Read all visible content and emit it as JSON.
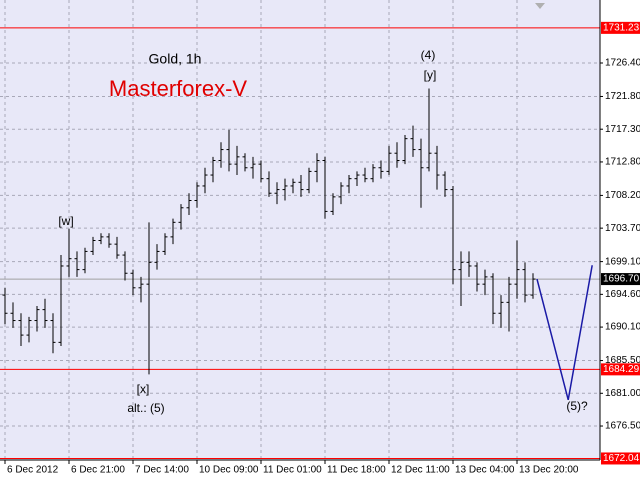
{
  "chart_data": {
    "type": "ohlc",
    "title": "Gold, 1h",
    "subtitle": "Masterforex-V",
    "color": "#000000",
    "open": [
      1694.5,
      1692.0,
      1691.0,
      1689.0,
      1691.0,
      1692.5,
      1691.0,
      1688.0,
      1698.5,
      1699.5,
      1698.0,
      1700.5,
      1702.0,
      1702.5,
      1701.5,
      1700.0,
      1697.5,
      1695.5,
      1696.0,
      1699.0,
      1700.5,
      1702.5,
      1704.5,
      1706.5,
      1707.5,
      1709.5,
      1711.0,
      1713.0,
      1714.5,
      1712.5,
      1713.5,
      1712.0,
      1712.5,
      1710.5,
      1708.5,
      1709.0,
      1709.5,
      1710.0,
      1709.0,
      1711.5,
      1713.0,
      1706.0,
      1708.0,
      1709.5,
      1710.5,
      1711.0,
      1710.5,
      1712.0,
      1711.5,
      1714.0,
      1713.0,
      1716.0,
      1714.5,
      1712.0,
      1714.0,
      1711.0,
      1709.0,
      1698.0,
      1699.0,
      1698.5,
      1696.0,
      1697.0,
      1692.0,
      1693.5,
      1696.0,
      1698.0,
      1694.5
    ],
    "high": [
      1695.5,
      1693.5,
      1692.0,
      1691.5,
      1693.0,
      1694.0,
      1692.0,
      1700.0,
      1703.6,
      1700.5,
      1701.0,
      1702.5,
      1703.0,
      1703.0,
      1702.5,
      1700.5,
      1698.0,
      1697.0,
      1704.5,
      1701.5,
      1703.0,
      1705.0,
      1707.0,
      1708.5,
      1710.0,
      1712.0,
      1713.5,
      1715.5,
      1717.2,
      1715.0,
      1714.0,
      1713.5,
      1713.0,
      1711.5,
      1710.0,
      1710.5,
      1710.5,
      1711.0,
      1712.0,
      1714.0,
      1713.5,
      1708.5,
      1710.0,
      1711.0,
      1711.5,
      1712.0,
      1712.5,
      1713.0,
      1715.0,
      1715.5,
      1716.5,
      1717.8,
      1716.0,
      1722.9,
      1715.0,
      1711.5,
      1709.5,
      1700.5,
      1700.5,
      1699.0,
      1698.0,
      1697.5,
      1694.5,
      1697.0,
      1702.0,
      1699.0,
      1697.5
    ],
    "low": [
      1690.5,
      1690.0,
      1687.5,
      1688.0,
      1689.5,
      1690.0,
      1686.5,
      1687.5,
      1697.0,
      1697.0,
      1697.5,
      1700.0,
      1701.5,
      1701.0,
      1699.5,
      1696.5,
      1694.5,
      1693.5,
      1683.6,
      1698.0,
      1700.0,
      1701.5,
      1703.5,
      1705.5,
      1706.5,
      1708.5,
      1710.0,
      1712.0,
      1711.5,
      1711.0,
      1711.5,
      1710.5,
      1710.0,
      1708.0,
      1707.0,
      1707.5,
      1708.5,
      1708.0,
      1708.5,
      1710.0,
      1705.0,
      1705.5,
      1707.0,
      1708.5,
      1709.5,
      1710.0,
      1710.0,
      1710.5,
      1711.0,
      1712.0,
      1712.5,
      1713.5,
      1706.5,
      1711.5,
      1709.0,
      1708.0,
      1696.0,
      1693.0,
      1697.0,
      1695.0,
      1694.5,
      1690.5,
      1690.0,
      1689.5,
      1694.0,
      1693.5,
      1694.0
    ],
    "close": [
      1692.0,
      1691.0,
      1689.0,
      1691.0,
      1692.5,
      1691.0,
      1688.0,
      1698.5,
      1699.5,
      1698.0,
      1700.5,
      1702.0,
      1702.5,
      1701.5,
      1700.0,
      1697.5,
      1695.5,
      1696.0,
      1699.0,
      1700.5,
      1702.5,
      1704.5,
      1706.5,
      1707.5,
      1709.5,
      1711.0,
      1713.0,
      1714.5,
      1712.5,
      1713.5,
      1712.0,
      1712.5,
      1710.5,
      1708.5,
      1709.0,
      1709.5,
      1710.0,
      1709.0,
      1711.5,
      1713.0,
      1706.0,
      1708.0,
      1709.5,
      1710.5,
      1711.0,
      1710.5,
      1712.0,
      1711.5,
      1714.0,
      1713.0,
      1716.0,
      1714.5,
      1712.0,
      1714.0,
      1711.0,
      1709.0,
      1698.0,
      1699.0,
      1698.5,
      1696.0,
      1697.0,
      1692.0,
      1693.5,
      1696.0,
      1698.0,
      1694.5,
      1696.7
    ],
    "projection": {
      "color": "#1a1aa6",
      "x": [
        66.5,
        70.4,
        73.4
      ],
      "values": [
        1696.7,
        1680.1,
        1698.6
      ]
    },
    "levels": [
      {
        "value": 1731.23,
        "color": "#ff0000"
      },
      {
        "value": 1684.29,
        "color": "#ff0000"
      },
      {
        "value": 1672.04,
        "color": "#ff0000"
      },
      {
        "value": {
          "value": 1696.7,
          "label": "1696.70"
        },
        "color": "#a0a0a0"
      }
    ],
    "ylim": [
      1671.83,
      1735.06
    ],
    "yticks": [
      {
        "value": 1726.4,
        "label": "1726.40"
      },
      {
        "value": 1721.8,
        "label": "1721.80"
      },
      {
        "value": 1717.3,
        "label": "1717.30"
      },
      {
        "value": 1712.8,
        "label": "1712.80"
      },
      {
        "value": 1708.2,
        "label": "1708.20"
      },
      {
        "value": 1703.7,
        "label": "1703.70"
      },
      {
        "value": 1699.1,
        "label": "1699.10"
      },
      {
        "value": 1694.6,
        "label": "1694.60"
      },
      {
        "value": 1690.1,
        "label": "1690.10"
      },
      {
        "value": 1685.5,
        "label": "1685.50"
      },
      {
        "value": 1681,
        "label": "1681.00"
      },
      {
        "value": 1676.5,
        "label": "1676.50"
      }
    ],
    "xlim": [
      -0.625,
      74.375
    ],
    "xticks": [
      {
        "value": 0,
        "label": "6 Dec 2012"
      },
      {
        "value": 8,
        "label": "6 Dec 21:00"
      },
      {
        "value": 16,
        "label": "7 Dec 14:00"
      },
      {
        "value": 24,
        "label": "10 Dec 09:00"
      },
      {
        "value": 32,
        "label": "11 Dec 01:00"
      },
      {
        "value": 40,
        "label": "11 Dec 18:00"
      },
      {
        "value": 48,
        "label": "12 Dec 11:00"
      },
      {
        "value": 56,
        "label": "13 Dec 04:00"
      },
      {
        "value": 64,
        "label": "13 Dec 20:00"
      }
    ],
    "grid": true,
    "annotations": [
      "[w]",
      "[x]",
      "alt.: (5)",
      "(4)",
      "[y]",
      "(5)?"
    ]
  }
}
